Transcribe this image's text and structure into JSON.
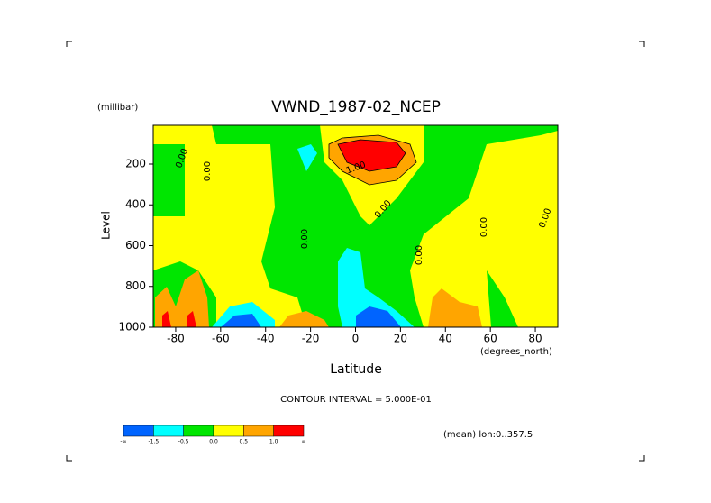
{
  "chart_data": {
    "type": "contour",
    "title": "VWND_1987-02_NCEP",
    "y_unit": "(millibar)",
    "y_label": "Level",
    "x_label": "Latitude",
    "x_unit": "(degrees_north)",
    "xlim": [
      -90,
      90
    ],
    "xticks": [
      -80,
      -60,
      -40,
      -20,
      0,
      20,
      40,
      60,
      80
    ],
    "ylim": [
      1000,
      10
    ],
    "yticks": [
      200,
      400,
      600,
      800,
      1000
    ],
    "contour_interval": "CONTOUR INTERVAL = 5.000E-01",
    "note": "(mean) lon:0..357.5",
    "contour_labels": [
      "0.00",
      "0.00",
      "1.00",
      "0.00",
      "0.00",
      "0.00",
      "0.00",
      "0.00"
    ],
    "colorbar": {
      "colors": [
        "#0064ff",
        "#00ffff",
        "#00e600",
        "#ffff00",
        "#ffa500",
        "#ff0000"
      ],
      "labels": [
        "-∞",
        "-1.5",
        "-0.5",
        "0.0",
        "0.5",
        "1.0",
        "∞"
      ]
    }
  }
}
